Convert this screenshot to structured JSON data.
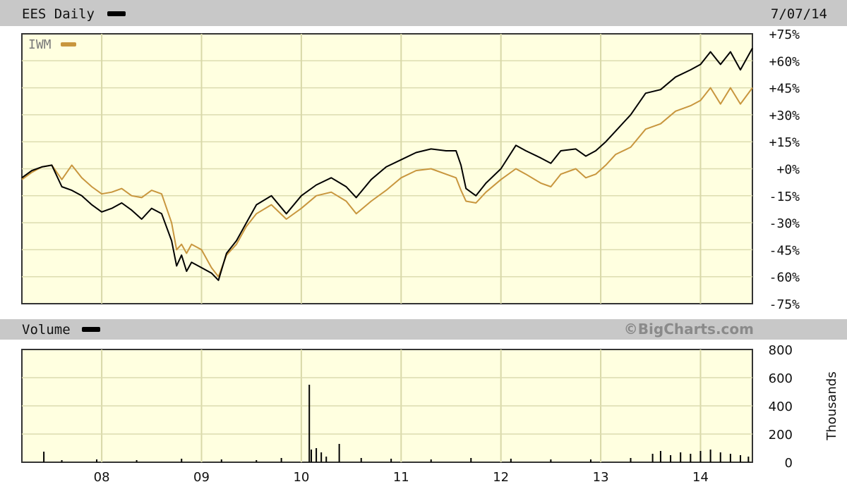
{
  "header": {
    "symbol_label": "EES Daily",
    "date": "7/07/14",
    "volume_label": "Volume",
    "watermark": "©BigCharts.com"
  },
  "legend": {
    "compare_label": "IWM"
  },
  "colors": {
    "primary_line": "#000000",
    "compare_line": "#c8963e",
    "plot_bg": "#ffffe0",
    "header_bg": "#c8c8c8",
    "grid": "#d8d8a8"
  },
  "chart_data": [
    {
      "type": "line",
      "title": "EES Daily",
      "x_ticks": [
        "08",
        "09",
        "10",
        "11",
        "12",
        "13",
        "14"
      ],
      "x_tick_years": [
        2008,
        2009,
        2010,
        2011,
        2012,
        2013,
        2014
      ],
      "xlim": [
        2007.2,
        2014.52
      ],
      "y_ticks": [
        "+75%",
        "+60%",
        "+45%",
        "+30%",
        "+15%",
        "+0%",
        "-15%",
        "-30%",
        "-45%",
        "-60%",
        "-75%"
      ],
      "ylim": [
        -75,
        75
      ],
      "grid": true,
      "legend_position": "top-left",
      "series": [
        {
          "name": "EES Daily",
          "x": [
            2007.2,
            2007.3,
            2007.4,
            2007.5,
            2007.6,
            2007.7,
            2007.8,
            2007.9,
            2008.0,
            2008.1,
            2008.2,
            2008.3,
            2008.4,
            2008.5,
            2008.6,
            2008.7,
            2008.75,
            2008.8,
            2008.85,
            2008.9,
            2009.0,
            2009.1,
            2009.17,
            2009.25,
            2009.35,
            2009.45,
            2009.55,
            2009.7,
            2009.85,
            2010.0,
            2010.15,
            2010.3,
            2010.45,
            2010.55,
            2010.7,
            2010.85,
            2011.0,
            2011.15,
            2011.3,
            2011.45,
            2011.55,
            2011.6,
            2011.65,
            2011.75,
            2011.85,
            2012.0,
            2012.15,
            2012.25,
            2012.4,
            2012.5,
            2012.6,
            2012.75,
            2012.85,
            2012.95,
            2013.05,
            2013.15,
            2013.3,
            2013.45,
            2013.6,
            2013.75,
            2013.9,
            2014.0,
            2014.1,
            2014.2,
            2014.3,
            2014.4,
            2014.52
          ],
          "values": [
            -5,
            -1,
            1,
            2,
            -10,
            -12,
            -15,
            -20,
            -24,
            -22,
            -19,
            -23,
            -28,
            -22,
            -25,
            -40,
            -54,
            -48,
            -57,
            -52,
            -55,
            -58,
            -62,
            -47,
            -40,
            -30,
            -20,
            -15,
            -25,
            -15,
            -9,
            -5,
            -10,
            -16,
            -6,
            1,
            5,
            9,
            11,
            10,
            10,
            2,
            -11,
            -15,
            -8,
            0,
            13,
            10,
            6,
            3,
            10,
            11,
            7,
            10,
            15,
            21,
            30,
            42,
            44,
            51,
            55,
            58,
            65,
            58,
            65,
            55,
            67
          ]
        },
        {
          "name": "IWM",
          "x": [
            2007.2,
            2007.3,
            2007.4,
            2007.5,
            2007.6,
            2007.7,
            2007.8,
            2007.9,
            2008.0,
            2008.1,
            2008.2,
            2008.3,
            2008.4,
            2008.5,
            2008.6,
            2008.7,
            2008.75,
            2008.8,
            2008.85,
            2008.9,
            2009.0,
            2009.1,
            2009.17,
            2009.25,
            2009.35,
            2009.45,
            2009.55,
            2009.7,
            2009.85,
            2010.0,
            2010.15,
            2010.3,
            2010.45,
            2010.55,
            2010.7,
            2010.85,
            2011.0,
            2011.15,
            2011.3,
            2011.45,
            2011.55,
            2011.6,
            2011.65,
            2011.75,
            2011.85,
            2012.0,
            2012.15,
            2012.25,
            2012.4,
            2012.5,
            2012.6,
            2012.75,
            2012.85,
            2012.95,
            2013.05,
            2013.15,
            2013.3,
            2013.45,
            2013.6,
            2013.75,
            2013.9,
            2014.0,
            2014.1,
            2014.2,
            2014.3,
            2014.4,
            2014.52
          ],
          "values": [
            -6,
            -2,
            1,
            2,
            -6,
            2,
            -5,
            -10,
            -14,
            -13,
            -11,
            -15,
            -16,
            -12,
            -14,
            -30,
            -45,
            -42,
            -47,
            -42,
            -45,
            -55,
            -60,
            -48,
            -42,
            -32,
            -25,
            -20,
            -28,
            -22,
            -15,
            -13,
            -18,
            -25,
            -18,
            -12,
            -5,
            -1,
            0,
            -3,
            -5,
            -12,
            -18,
            -19,
            -13,
            -6,
            0,
            -3,
            -8,
            -10,
            -3,
            0,
            -5,
            -3,
            2,
            8,
            12,
            22,
            25,
            32,
            35,
            38,
            45,
            36,
            45,
            36,
            45
          ]
        }
      ]
    },
    {
      "type": "bar",
      "title": "Volume",
      "ylabel": "Thousands",
      "y_ticks": [
        "800",
        "600",
        "400",
        "200",
        "0"
      ],
      "ylim": [
        0,
        800
      ],
      "xlim": [
        2007.2,
        2014.52
      ],
      "grid": true,
      "x": [
        2007.42,
        2007.6,
        2007.95,
        2008.35,
        2008.8,
        2009.2,
        2009.55,
        2009.8,
        2010.08,
        2010.1,
        2010.15,
        2010.2,
        2010.25,
        2010.38,
        2010.6,
        2010.9,
        2011.3,
        2011.7,
        2012.1,
        2012.5,
        2012.9,
        2013.3,
        2013.52,
        2013.6,
        2013.7,
        2013.8,
        2013.9,
        2014.0,
        2014.1,
        2014.2,
        2014.3,
        2014.4,
        2014.48
      ],
      "values": [
        75,
        15,
        20,
        15,
        25,
        20,
        15,
        30,
        550,
        90,
        100,
        70,
        40,
        130,
        30,
        25,
        20,
        30,
        25,
        20,
        20,
        30,
        60,
        80,
        50,
        70,
        60,
        80,
        90,
        70,
        60,
        50,
        40
      ]
    }
  ]
}
